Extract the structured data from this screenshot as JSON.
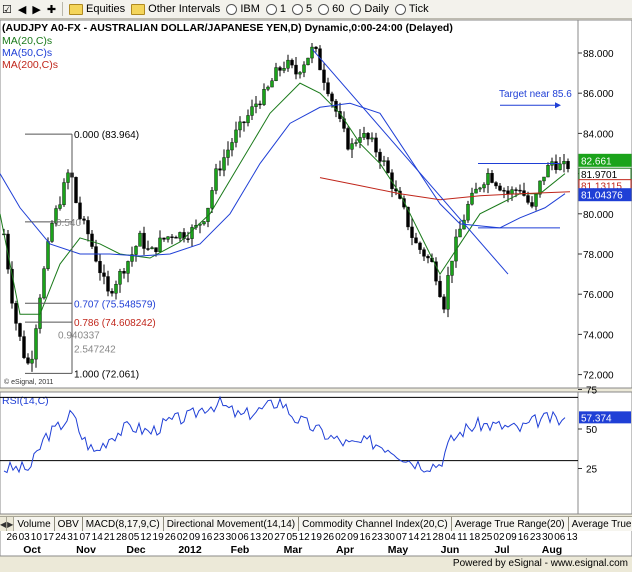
{
  "toolbar": {
    "items": [
      "Equities",
      "Other Intervals",
      "IBM",
      "1",
      "5",
      "60",
      "Daily",
      "Tick"
    ]
  },
  "chart_data": {
    "type": "candlestick",
    "title": "(AUDJPY A0-FX - AUSTRALIAN DOLLAR/JAPANESE YEN,D) Dynamic,0:00-24:00 (Delayed)",
    "legend": [
      "MA(20,C)s",
      "MA(50,C)s",
      "MA(200,C)s"
    ],
    "ylim": [
      71,
      89
    ],
    "y_ticks": [
      "88.000",
      "86.000",
      "84.000",
      "82.000",
      "80.000",
      "78.000",
      "76.000",
      "74.000",
      "72.000"
    ],
    "x_day_labels": [
      "26",
      "03",
      "10",
      "17",
      "24",
      "31",
      "07",
      "14",
      "21",
      "28",
      "05",
      "12",
      "19",
      "26",
      "02",
      "09",
      "16",
      "23",
      "30",
      "06",
      "13",
      "20",
      "27",
      "05",
      "12",
      "19",
      "26",
      "02",
      "09",
      "16",
      "23",
      "30",
      "07",
      "14",
      "21",
      "28",
      "04",
      "11",
      "18",
      "25",
      "02",
      "09",
      "16",
      "23",
      "30",
      "06",
      "13"
    ],
    "x_month_labels": [
      "Oct",
      "Nov",
      "Dec",
      "2012",
      "Feb",
      "Mar",
      "Apr",
      "May",
      "Jun",
      "Jul",
      "Aug"
    ],
    "price_labels": [
      "82.661",
      "81.9701",
      "81.13115",
      "81.04376"
    ],
    "annotations": [
      "Target near 85.6",
      "0.000 (83.964)",
      "0.540",
      "0.707 (75.548579)",
      "0.940337",
      "0.786 (74.608242)",
      "2.547242",
      "1.000 (72.061)",
      "© eSignal, 2011"
    ],
    "rsi": {
      "label": "RSI(14,C)",
      "ylim": [
        0,
        100
      ],
      "ticks": [
        "75",
        "50",
        "25"
      ],
      "bands": [
        70,
        30
      ],
      "last_label": "57.374"
    }
  },
  "tabs": [
    "Volume",
    "OBV",
    "MACD(8,17,9,C)",
    "Directional Movement(14,14)",
    "Commodity Channel Index(20,C)",
    "Average True Range(20)",
    "Average True F"
  ],
  "footer": {
    "credit": "Powered by eSignal - www.esignal.com"
  }
}
